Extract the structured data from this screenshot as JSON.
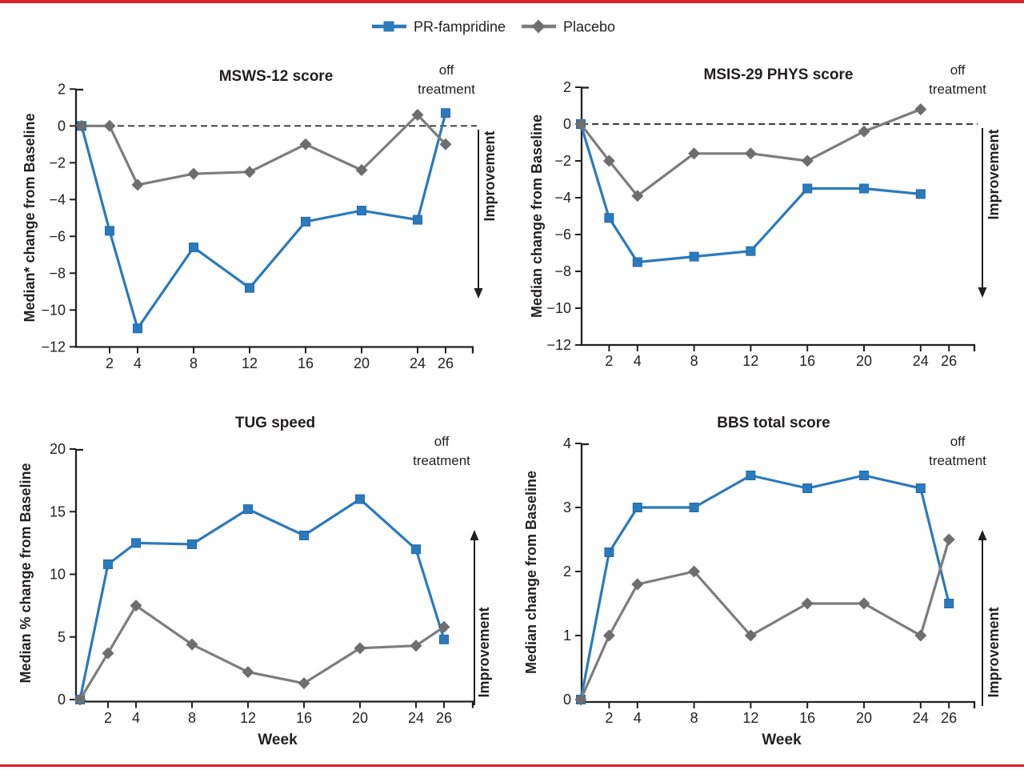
{
  "figure": {
    "background": "#ffffff",
    "rule_color": "#dd2127",
    "text_color": "#221f1f"
  },
  "legend": {
    "items": [
      {
        "label": "PR-fampridine",
        "marker": "square",
        "color": "#2b7abc",
        "marker_stroke": "#1e6aae"
      },
      {
        "label": "Placebo",
        "marker": "diamond",
        "color": "#6e6e6e",
        "line_color": "#7d7d7d"
      }
    ]
  },
  "annotations": {
    "off_treatment_line1": "off",
    "off_treatment_line2": "treatment",
    "improvement": "Improvement",
    "week_axis_label": "Week"
  },
  "chart_data": [
    {
      "type": "line",
      "title": "MSWS-12 score",
      "ylabel": "Median* change from Baseline",
      "xlabel": "Week",
      "x_weeks": [
        0,
        2,
        4,
        8,
        12,
        16,
        20,
        24,
        26
      ],
      "xticks": [
        2,
        4,
        8,
        12,
        16,
        20,
        24,
        26
      ],
      "yticks": [
        2,
        0,
        -2,
        -4,
        -6,
        -8,
        -10,
        -12
      ],
      "ylim": [
        -12,
        2
      ],
      "zero_dashed_line": true,
      "improvement_direction": "down",
      "legend_position": "top-center-shared",
      "series": [
        {
          "name": "PR-fampridine",
          "marker": "square",
          "color": "#2b7abc",
          "marker_stroke": "#1e6aae",
          "values": [
            0,
            -5.7,
            -11.0,
            -6.6,
            -8.8,
            -5.2,
            -4.6,
            -5.1,
            0.7
          ]
        },
        {
          "name": "Placebo",
          "marker": "diamond",
          "color": "#7d7d7d",
          "marker_fill": "#6e6e6e",
          "values": [
            0,
            0,
            -3.2,
            -2.6,
            -2.5,
            -1.0,
            -2.4,
            0.6,
            -1.0
          ]
        }
      ]
    },
    {
      "type": "line",
      "title": "MSIS-29 PHYS score",
      "ylabel": "Median change from Baseline",
      "xlabel": "Week",
      "x_weeks": [
        0,
        2,
        4,
        8,
        12,
        16,
        20,
        24
      ],
      "xticks": [
        2,
        4,
        8,
        12,
        16,
        20,
        24,
        26
      ],
      "yticks": [
        2,
        0,
        -2,
        -4,
        -6,
        -8,
        -10,
        -12
      ],
      "ylim": [
        -12,
        2
      ],
      "zero_dashed_line": true,
      "improvement_direction": "down",
      "series": [
        {
          "name": "PR-fampridine",
          "marker": "square",
          "color": "#2b7abc",
          "marker_stroke": "#1e6aae",
          "values": [
            0,
            -5.1,
            -7.5,
            -7.2,
            -6.9,
            -3.5,
            -3.5,
            -3.8
          ]
        },
        {
          "name": "Placebo",
          "marker": "diamond",
          "color": "#7d7d7d",
          "marker_fill": "#6e6e6e",
          "values": [
            0,
            -2.0,
            -3.9,
            -1.6,
            -1.6,
            -2.0,
            -0.4,
            0.8
          ]
        }
      ]
    },
    {
      "type": "line",
      "title": "TUG speed",
      "ylabel": "Median % change from Baseline",
      "xlabel": "Week",
      "x_weeks": [
        0,
        2,
        4,
        8,
        12,
        16,
        20,
        24,
        26
      ],
      "xticks": [
        2,
        4,
        8,
        12,
        16,
        20,
        24,
        26
      ],
      "yticks": [
        20,
        15,
        10,
        5,
        0
      ],
      "ylim": [
        0,
        20
      ],
      "zero_dashed_line": false,
      "improvement_direction": "up",
      "series": [
        {
          "name": "PR-fampridine",
          "marker": "square",
          "color": "#2b7abc",
          "marker_stroke": "#1e6aae",
          "values": [
            0,
            10.8,
            12.5,
            12.4,
            15.2,
            13.1,
            16.0,
            12.0,
            4.8
          ]
        },
        {
          "name": "Placebo",
          "marker": "diamond",
          "color": "#7d7d7d",
          "marker_fill": "#6e6e6e",
          "values": [
            0,
            3.7,
            7.5,
            4.4,
            2.2,
            1.3,
            4.1,
            4.3,
            5.8
          ]
        }
      ]
    },
    {
      "type": "line",
      "title": "BBS total score",
      "ylabel": "Median change from Baseline",
      "xlabel": "Week",
      "x_weeks": [
        0,
        2,
        4,
        8,
        12,
        16,
        20,
        24,
        26
      ],
      "xticks": [
        2,
        4,
        8,
        12,
        16,
        20,
        24,
        26
      ],
      "yticks": [
        4,
        3,
        2,
        1,
        0
      ],
      "ylim": [
        0,
        4
      ],
      "zero_dashed_line": false,
      "improvement_direction": "up",
      "series": [
        {
          "name": "PR-fampridine",
          "marker": "square",
          "color": "#2b7abc",
          "marker_stroke": "#1e6aae",
          "values": [
            0,
            2.3,
            3.0,
            3.0,
            3.5,
            3.3,
            3.5,
            3.3,
            1.5
          ]
        },
        {
          "name": "Placebo",
          "marker": "diamond",
          "color": "#7d7d7d",
          "marker_fill": "#6e6e6e",
          "values": [
            0,
            1.0,
            1.8,
            2.0,
            1.0,
            1.5,
            1.5,
            1.0,
            2.5
          ]
        }
      ]
    }
  ]
}
